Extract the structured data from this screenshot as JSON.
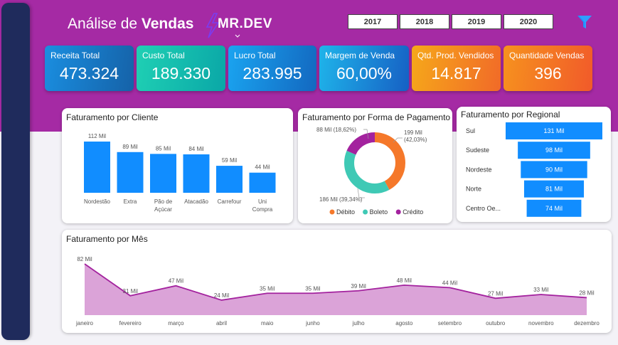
{
  "header": {
    "title_prefix": "Análise de ",
    "title_bold": "Vendas",
    "logo_text": "MR.DEV",
    "years": [
      "2017",
      "2018",
      "2019",
      "2020"
    ],
    "filter_icon": "filter-icon",
    "colors": {
      "banner": "#a52aa4",
      "sidebar": "#1f2b5c"
    }
  },
  "kpis": [
    {
      "label": "Receita Total",
      "value": "473.324",
      "gradient": [
        "#1a8ee0",
        "#1562a8"
      ]
    },
    {
      "label": "Custo Total",
      "value": "189.330",
      "gradient": [
        "#1fd0b4",
        "#0aa7a7"
      ]
    },
    {
      "label": "Lucro Total",
      "value": "283.995",
      "gradient": [
        "#1aa4f0",
        "#1368c0"
      ]
    },
    {
      "label": "Margem de Venda",
      "value": "60,00%",
      "gradient": [
        "#1fb4ea",
        "#1660c4"
      ]
    },
    {
      "label": "Qtd. Prod. Vendidos",
      "value": "14.817",
      "gradient": [
        "#f6a81a",
        "#f16a28"
      ]
    },
    {
      "label": "Quantidade Vendas",
      "value": "396",
      "gradient": [
        "#f6921e",
        "#f15a2a"
      ]
    }
  ],
  "cards": {
    "cliente": "Faturamento por Cliente",
    "pagamento": "Faturamento por Forma de Pagamento",
    "regional": "Faturamento por Regional",
    "mes": "Faturamento por Mês"
  },
  "chart_data": [
    {
      "type": "bar",
      "title": "Faturamento por Cliente",
      "categories": [
        "Nordestão",
        "Extra",
        "Pão de Açúcar",
        "Atacadão",
        "Carrefour",
        "Uni Compra"
      ],
      "category_labels": [
        [
          "Nordestão"
        ],
        [
          "Extra"
        ],
        [
          "Pão de",
          "Açúcar"
        ],
        [
          "Atacadão"
        ],
        [
          "Carrefour"
        ],
        [
          "Uni",
          "Compra"
        ]
      ],
      "values": [
        112,
        89,
        85,
        84,
        59,
        44
      ],
      "data_labels": [
        "112 Mil",
        "89 Mil",
        "85 Mil",
        "84 Mil",
        "59 Mil",
        "44 Mil"
      ],
      "color": "#118dff"
    },
    {
      "type": "pie",
      "title": "Faturamento por Forma de Pagamento",
      "categories": [
        "Débito",
        "Boleto",
        "Crédito"
      ],
      "values": [
        42.03,
        39.34,
        18.62
      ],
      "colors": [
        "#f5782a",
        "#3fc9b5",
        "#a3229e"
      ],
      "data_labels": [
        [
          "199 Mil",
          "(42,03%)"
        ],
        [
          "186 Mil (39,34%)"
        ],
        [
          "88 Mil (18,62%)"
        ]
      ],
      "legend": "bottom"
    },
    {
      "type": "bar",
      "title": "Faturamento por Regional",
      "orientation": "funnel",
      "categories": [
        "Sul",
        "Sudeste",
        "Nordeste",
        "Norte",
        "Centro Oe..."
      ],
      "values": [
        131,
        98,
        90,
        81,
        74
      ],
      "data_labels": [
        "131 Mil",
        "98 Mil",
        "90 Mil",
        "81 Mil",
        "74 Mil"
      ],
      "color": "#118dff"
    },
    {
      "type": "area",
      "title": "Faturamento por Mês",
      "categories": [
        "janeiro",
        "fevereiro",
        "março",
        "abril",
        "maio",
        "junho",
        "julho",
        "agosto",
        "setembro",
        "outubro",
        "novembro",
        "dezembro"
      ],
      "values": [
        82,
        31,
        47,
        24,
        35,
        35,
        39,
        48,
        44,
        27,
        33,
        28
      ],
      "data_labels": [
        "82 Mil",
        "31 Mil",
        "47 Mil",
        "24 Mil",
        "35 Mil",
        "35 Mil",
        "39 Mil",
        "48 Mil",
        "44 Mil",
        "27 Mil",
        "33 Mil",
        "28 Mil"
      ],
      "line_color": "#a3229e",
      "fill_color": "#dba3d8"
    }
  ]
}
